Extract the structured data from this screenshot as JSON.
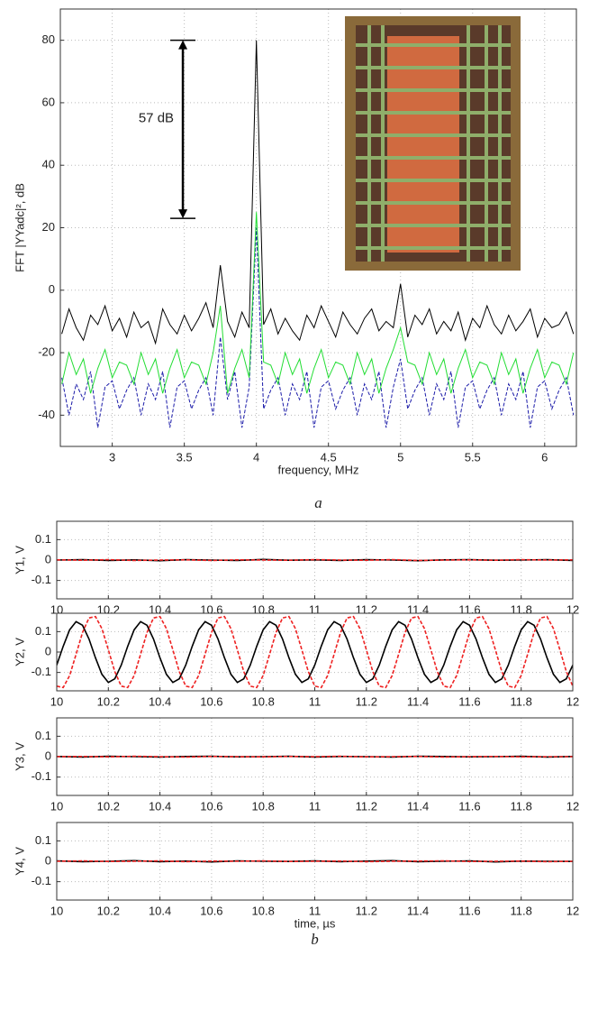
{
  "chart_data": [
    {
      "type": "line",
      "xlabel": "frequency, MHz",
      "ylabel": "FFT |YYadc|², dB",
      "caption": "a",
      "grid": true,
      "xlim": [
        2.64,
        6.22
      ],
      "ylim": [
        -50,
        90
      ],
      "xticks": [
        3,
        3.5,
        4,
        4.5,
        5,
        5.5,
        6
      ],
      "yticks": [
        -40,
        -20,
        0,
        20,
        40,
        60,
        80
      ],
      "x": [
        2.65,
        2.7,
        2.75,
        2.8,
        2.85,
        2.9,
        2.95,
        3,
        3.05,
        3.1,
        3.15,
        3.2,
        3.25,
        3.3,
        3.35,
        3.4,
        3.45,
        3.5,
        3.55,
        3.6,
        3.65,
        3.7,
        3.75,
        3.8,
        3.85,
        3.9,
        3.95,
        4,
        4.05,
        4.1,
        4.15,
        4.2,
        4.25,
        4.3,
        4.35,
        4.4,
        4.45,
        4.5,
        4.55,
        4.6,
        4.65,
        4.7,
        4.75,
        4.8,
        4.85,
        4.9,
        4.95,
        5,
        5.05,
        5.1,
        5.15,
        5.2,
        5.25,
        5.3,
        5.35,
        5.4,
        5.45,
        5.5,
        5.55,
        5.6,
        5.65,
        5.7,
        5.75,
        5.8,
        5.85,
        5.9,
        5.95,
        6,
        6.05,
        6.1,
        6.15,
        6.2
      ],
      "series": [
        {
          "color": "#000000",
          "style": "solid",
          "values": [
            -14,
            -6,
            -12,
            -16,
            -8,
            -11,
            -5,
            -13,
            -9,
            -15,
            -7,
            -12,
            -10,
            -17,
            -6,
            -11,
            -14,
            -8,
            -13,
            -9,
            -4,
            -12,
            8,
            -10,
            -15,
            -7,
            -12,
            80,
            -11,
            -6,
            -14,
            -9,
            -13,
            -16,
            -8,
            -12,
            -5,
            -10,
            -15,
            -7,
            -11,
            -14,
            -9,
            -6,
            -13,
            -10,
            -12,
            2,
            -15,
            -8,
            -11,
            -6,
            -14,
            -10,
            -13,
            -7,
            -16,
            -9,
            -12,
            -5,
            -11,
            -14,
            -8,
            -13,
            -10,
            -6,
            -15,
            -9,
            -12,
            -11,
            -7,
            -14
          ]
        },
        {
          "color": "#1a1aa8",
          "style": "dashed",
          "values": [
            -28,
            -40,
            -30,
            -35,
            -26,
            -44,
            -31,
            -29,
            -38,
            -32,
            -28,
            -40,
            -30,
            -35,
            -26,
            -44,
            -31,
            -29,
            -38,
            -32,
            -28,
            -40,
            -15,
            -35,
            -26,
            -44,
            -31,
            20,
            -38,
            -32,
            -28,
            -40,
            -30,
            -35,
            -26,
            -44,
            -31,
            -29,
            -38,
            -32,
            -28,
            -40,
            -30,
            -35,
            -26,
            -44,
            -31,
            -22,
            -38,
            -32,
            -28,
            -40,
            -30,
            -35,
            -26,
            -44,
            -31,
            -29,
            -38,
            -32,
            -28,
            -40,
            -30,
            -35,
            -26,
            -44,
            -31,
            -29,
            -38,
            -32,
            -28,
            -40
          ]
        },
        {
          "color": "#22dd33",
          "style": "solid",
          "values": [
            -30,
            -20,
            -27,
            -22,
            -33,
            -25,
            -19,
            -28,
            -23,
            -24,
            -30,
            -20,
            -27,
            -22,
            -33,
            -25,
            -19,
            -28,
            -23,
            -24,
            -30,
            -20,
            -5,
            -33,
            -25,
            -19,
            -28,
            25,
            -23,
            -24,
            -30,
            -20,
            -27,
            -22,
            -33,
            -25,
            -19,
            -28,
            -23,
            -24,
            -30,
            -20,
            -27,
            -22,
            -33,
            -25,
            -19,
            -12,
            -23,
            -24,
            -30,
            -20,
            -27,
            -22,
            -33,
            -25,
            -19,
            -28,
            -23,
            -24,
            -30,
            -20,
            -27,
            -22,
            -33,
            -25,
            -19,
            -28,
            -23,
            -24,
            -30,
            -20
          ]
        }
      ],
      "annotation": {
        "text": "57 dB",
        "x": 3.49,
        "y": [
          80,
          23
        ]
      }
    },
    {
      "type": "line",
      "ylabel": "Y1, V",
      "grid": true,
      "xlim": [
        10,
        12
      ],
      "ylim": [
        -0.19,
        0.19
      ],
      "xticks": [
        10,
        10.2,
        10.4,
        10.6,
        10.8,
        11,
        11.2,
        11.4,
        11.6,
        11.8,
        12
      ],
      "yticks": [
        -0.1,
        0,
        0.1
      ],
      "x": [
        10,
        10.1,
        10.2,
        10.3,
        10.4,
        10.5,
        10.6,
        10.7,
        10.8,
        10.9,
        11,
        11.1,
        11.2,
        11.3,
        11.4,
        11.5,
        11.6,
        11.7,
        11.8,
        11.9,
        12
      ],
      "series": [
        {
          "color": "#000000",
          "style": "solid",
          "values": [
            0,
            0.002,
            -0.002,
            0.001,
            -0.003,
            0.002,
            0,
            -0.002,
            0.003,
            -0.001,
            0.001,
            -0.002,
            0.002,
            0,
            -0.003,
            0.001,
            0.002,
            -0.001,
            0,
            0.002,
            -0.002
          ]
        },
        {
          "color": "#ee2222",
          "style": "dashed",
          "values": [
            0.001,
            -0.001,
            0.002,
            -0.002,
            0,
            0.001,
            -0.002,
            0.001,
            0,
            -0.001,
            0.002,
            0,
            -0.001,
            0.002,
            -0.002,
            0,
            0.001,
            -0.001,
            0.002,
            0,
            0.001
          ]
        }
      ]
    },
    {
      "type": "line",
      "ylabel": "Y2, V",
      "grid": true,
      "xlim": [
        10,
        12
      ],
      "ylim": [
        -0.19,
        0.19
      ],
      "xticks": [
        10,
        10.2,
        10.4,
        10.6,
        10.8,
        11,
        11.2,
        11.4,
        11.6,
        11.8,
        12
      ],
      "yticks": [
        -0.1,
        0,
        0.1
      ],
      "x": [
        10,
        10.025,
        10.05,
        10.075,
        10.1,
        10.125,
        10.15,
        10.175,
        10.2,
        10.225,
        10.25,
        10.275,
        10.3,
        10.325,
        10.35,
        10.375,
        10.4,
        10.425,
        10.45,
        10.475,
        10.5,
        10.525,
        10.55,
        10.575,
        10.6,
        10.625,
        10.65,
        10.675,
        10.7,
        10.725,
        10.75,
        10.775,
        10.8,
        10.825,
        10.85,
        10.875,
        10.9,
        10.925,
        10.95,
        10.975,
        11,
        11.025,
        11.05,
        11.075,
        11.1,
        11.125,
        11.15,
        11.175,
        11.2,
        11.225,
        11.25,
        11.275,
        11.3,
        11.325,
        11.35,
        11.375,
        11.4,
        11.425,
        11.45,
        11.475,
        11.5,
        11.525,
        11.55,
        11.575,
        11.6,
        11.625,
        11.65,
        11.675,
        11.7,
        11.725,
        11.75,
        11.775,
        11.8,
        11.825,
        11.85,
        11.875,
        11.9,
        11.925,
        11.95,
        11.975,
        12
      ],
      "series": [
        {
          "color": "#000000",
          "style": "solid",
          "values": [
            -0.064,
            0.028,
            0.109,
            0.149,
            0.131,
            0.064,
            -0.028,
            -0.109,
            -0.149,
            -0.131,
            -0.064,
            0.028,
            0.109,
            0.149,
            0.131,
            0.064,
            -0.028,
            -0.109,
            -0.149,
            -0.131,
            -0.064,
            0.028,
            0.109,
            0.149,
            0.131,
            0.064,
            -0.028,
            -0.109,
            -0.149,
            -0.131,
            -0.064,
            0.028,
            0.109,
            0.149,
            0.131,
            0.064,
            -0.028,
            -0.109,
            -0.149,
            -0.131,
            -0.064,
            0.028,
            0.109,
            0.149,
            0.131,
            0.064,
            -0.028,
            -0.109,
            -0.149,
            -0.131,
            -0.064,
            0.028,
            0.109,
            0.149,
            0.131,
            0.064,
            -0.028,
            -0.109,
            -0.149,
            -0.131,
            -0.064,
            0.028,
            0.109,
            0.149,
            0.131,
            0.064,
            -0.028,
            -0.109,
            -0.149,
            -0.131,
            -0.064,
            0.028,
            0.109,
            0.149,
            0.131,
            0.064,
            -0.028,
            -0.109,
            -0.149,
            -0.131,
            -0.064
          ]
        },
        {
          "color": "#ee2222",
          "style": "dashed",
          "values": [
            -0.167,
            -0.174,
            -0.115,
            -0.011,
            0.096,
            0.167,
            0.174,
            0.115,
            0.011,
            -0.096,
            -0.167,
            -0.174,
            -0.115,
            -0.011,
            0.096,
            0.167,
            0.174,
            0.115,
            0.011,
            -0.096,
            -0.167,
            -0.174,
            -0.115,
            -0.011,
            0.096,
            0.167,
            0.174,
            0.115,
            0.011,
            -0.096,
            -0.167,
            -0.174,
            -0.115,
            -0.011,
            0.096,
            0.167,
            0.174,
            0.115,
            0.011,
            -0.096,
            -0.167,
            -0.174,
            -0.115,
            -0.011,
            0.096,
            0.167,
            0.174,
            0.115,
            0.011,
            -0.096,
            -0.167,
            -0.174,
            -0.115,
            -0.011,
            0.096,
            0.167,
            0.174,
            0.115,
            0.011,
            -0.096,
            -0.167,
            -0.174,
            -0.115,
            -0.011,
            0.096,
            0.167,
            0.174,
            0.115,
            0.011,
            -0.096,
            -0.167,
            -0.174,
            -0.115,
            -0.011,
            0.096,
            0.167,
            0.174,
            0.115,
            0.011,
            -0.096,
            -0.167
          ]
        }
      ]
    },
    {
      "type": "line",
      "ylabel": "Y3, V",
      "grid": true,
      "xlim": [
        10,
        12
      ],
      "ylim": [
        -0.19,
        0.19
      ],
      "xticks": [
        10,
        10.2,
        10.4,
        10.6,
        10.8,
        11,
        11.2,
        11.4,
        11.6,
        11.8,
        12
      ],
      "yticks": [
        -0.1,
        0,
        0.1
      ],
      "x": [
        10,
        10.1,
        10.2,
        10.3,
        10.4,
        10.5,
        10.6,
        10.7,
        10.8,
        10.9,
        11,
        11.1,
        11.2,
        11.3,
        11.4,
        11.5,
        11.6,
        11.7,
        11.8,
        11.9,
        12
      ],
      "series": [
        {
          "color": "#000000",
          "style": "solid",
          "values": [
            0.001,
            -0.002,
            0.002,
            0,
            -0.002,
            0.001,
            0.002,
            -0.001,
            0,
            0.002,
            -0.002,
            0.001,
            0,
            -0.002,
            0.002,
            0.001,
            -0.001,
            0,
            0.002,
            -0.002,
            0.001
          ]
        },
        {
          "color": "#ee2222",
          "style": "dashed",
          "values": [
            0,
            0.001,
            -0.001,
            0.002,
            0,
            -0.002,
            0.001,
            0,
            -0.001,
            0.001,
            0,
            0.002,
            -0.001,
            0,
            0.001,
            -0.002,
            0,
            0.001,
            -0.001,
            0,
            0
          ]
        }
      ]
    },
    {
      "type": "line",
      "ylabel": "Y4, V",
      "xlabel": "time, µs",
      "caption": "b",
      "grid": true,
      "xlim": [
        10,
        12
      ],
      "ylim": [
        -0.19,
        0.19
      ],
      "xticks": [
        10,
        10.2,
        10.4,
        10.6,
        10.8,
        11,
        11.2,
        11.4,
        11.6,
        11.8,
        12
      ],
      "yticks": [
        -0.1,
        0,
        0.1
      ],
      "x": [
        10,
        10.1,
        10.2,
        10.3,
        10.4,
        10.5,
        10.6,
        10.7,
        10.8,
        10.9,
        11,
        11.1,
        11.2,
        11.3,
        11.4,
        11.5,
        11.6,
        11.7,
        11.8,
        11.9,
        12
      ],
      "series": [
        {
          "color": "#000000",
          "style": "solid",
          "values": [
            0.002,
            -0.002,
            0,
            0.003,
            -0.002,
            0.001,
            -0.003,
            0.002,
            0,
            -0.001,
            0.002,
            -0.002,
            0.001,
            0.003,
            -0.002,
            0,
            0.002,
            -0.003,
            0.001,
            0,
            -0.001
          ]
        },
        {
          "color": "#ee2222",
          "style": "dashed",
          "values": [
            0,
            0.002,
            -0.001,
            0,
            0.002,
            -0.002,
            0.001,
            0,
            0.002,
            -0.001,
            0,
            0.001,
            -0.002,
            0,
            0.001,
            0.002,
            -0.001,
            0,
            0.001,
            -0.002,
            0
          ]
        }
      ]
    }
  ]
}
